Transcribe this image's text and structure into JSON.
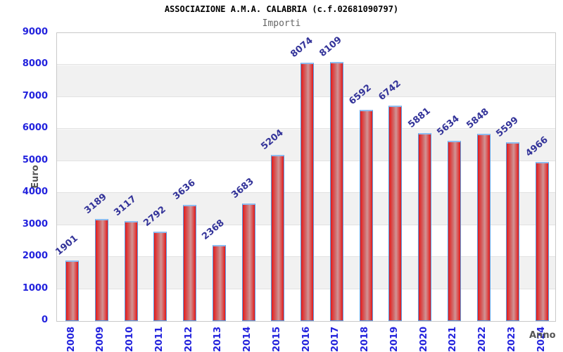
{
  "header": {
    "title": "ASSOCIAZIONE A.M.A. CALABRIA (c.f.02681090797)",
    "subtitle": "Importi"
  },
  "axes": {
    "y_title": "Euro",
    "x_title": "Anno"
  },
  "chart_data": {
    "type": "bar",
    "title": "ASSOCIAZIONE A.M.A. CALABRIA (c.f.02681090797)",
    "subtitle": "Importi",
    "xlabel": "Anno",
    "ylabel": "Euro",
    "categories": [
      "2008",
      "2009",
      "2010",
      "2011",
      "2012",
      "2013",
      "2014",
      "2015",
      "2016",
      "2017",
      "2018",
      "2019",
      "2020",
      "2021",
      "2022",
      "2023",
      "2024"
    ],
    "values": [
      1901,
      3189,
      3117,
      2792,
      3636,
      2368,
      3683,
      5204,
      8074,
      8109,
      6592,
      6742,
      5881,
      5634,
      5848,
      5599,
      4966
    ],
    "ylim": [
      0,
      9000
    ],
    "yticks": [
      0,
      1000,
      2000,
      3000,
      4000,
      5000,
      6000,
      7000,
      8000,
      9000
    ],
    "grid": "horizontal-bands",
    "legend": null,
    "colors": {
      "bar_fill": "#e01818",
      "bar_fill_highlight": "#d29495",
      "bar_border": "#5a9ce2",
      "bar_top_cap": "#8fbcee",
      "value_label": "#333399",
      "tick_label": "#2222dd",
      "axis_title": "#555555",
      "band_gray": "#f1f1f1",
      "band_white": "#ffffff",
      "plot_border": "#c9c9c9",
      "title": "#000000",
      "subtitle": "#666666"
    }
  }
}
